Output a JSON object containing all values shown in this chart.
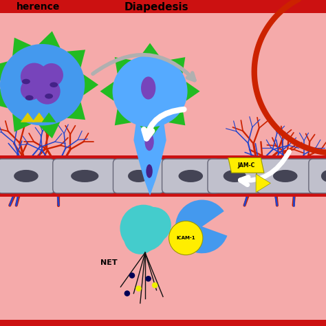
{
  "bg_color": "#f5aaaa",
  "border_color": "#cc1111",
  "cell_blue": "#4499ee",
  "cell_blue_mid": "#55aaff",
  "cell_blue_light": "#88ccff",
  "granule_green": "#22bb22",
  "nucleus_purple": "#7744bb",
  "nucleus_dark": "#553399",
  "nucleus_darker": "#442288",
  "endothelium_gray": "#c0c0cc",
  "endo_nucleus": "#444455",
  "arrow_gray": "#b0b0b0",
  "red_vessel": "#cc2200",
  "blue_vessel": "#2244cc",
  "teal_cell": "#44cccc",
  "yellow_label": "#ffee00",
  "yellow_granule": "#ddcc00",
  "white": "#ffffff",
  "title_text": "Diapedesis",
  "adherence_text": "herence",
  "net_text": "NET",
  "icam1_text": "ICAM-1",
  "jamc_text": "JAM-C"
}
